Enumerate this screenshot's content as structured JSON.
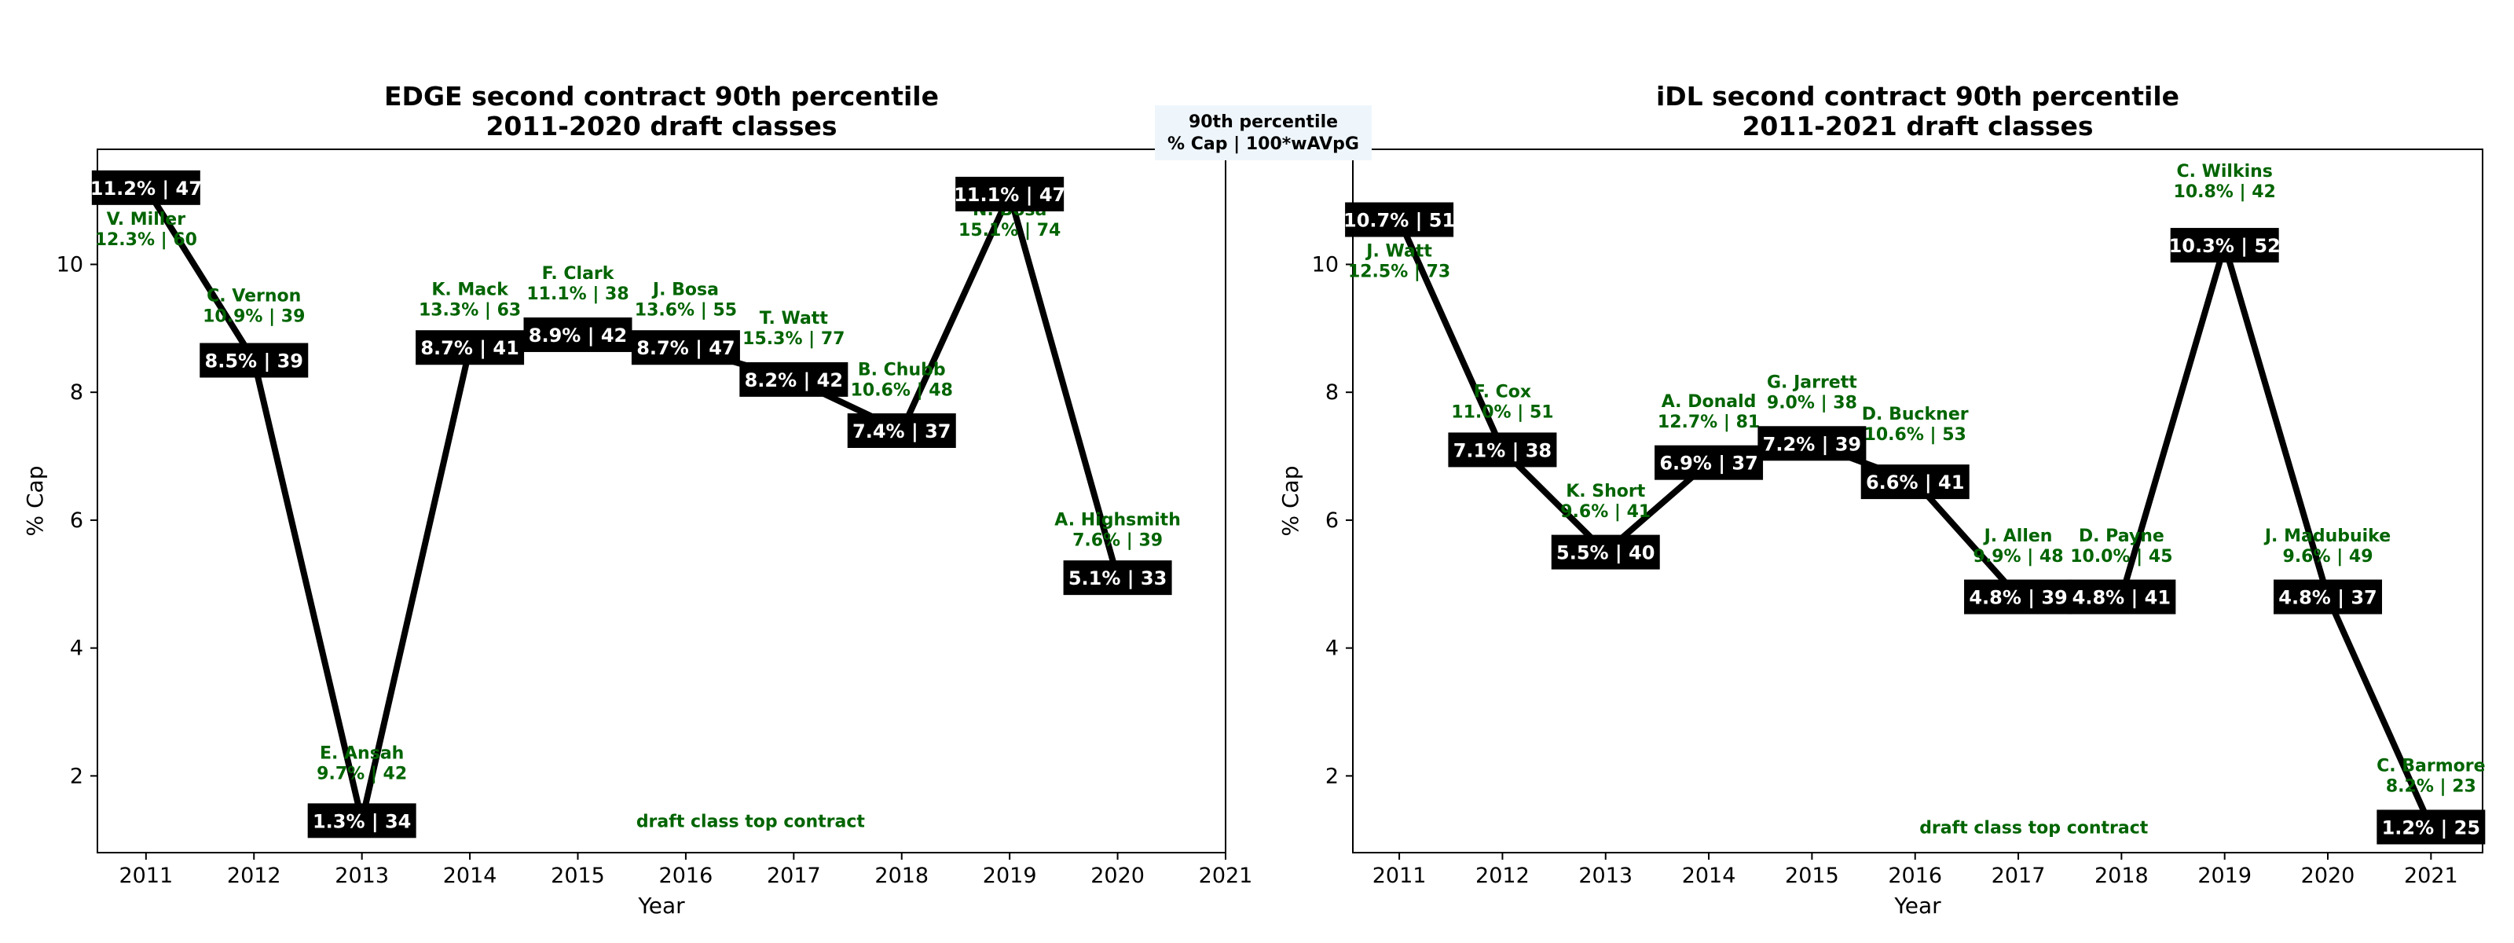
{
  "legend": {
    "line1": "90th percentile",
    "line2": "% Cap | 100*wAVpG",
    "bg": "#eef6fc"
  },
  "colors": {
    "line": "#000000",
    "label_box": "#000000",
    "label_text": "#ffffff",
    "annotation": "#006400"
  },
  "chart_data": [
    {
      "type": "line",
      "title_line1": "EDGE second contract 90th percentile",
      "title_line2": "2011-2020 draft classes",
      "xlabel": "Year",
      "ylabel": "% Cap",
      "xlim": [
        2010.55,
        2021
      ],
      "ylim": [
        0.8,
        11.8
      ],
      "xticks": [
        2011,
        2012,
        2013,
        2014,
        2015,
        2016,
        2017,
        2018,
        2019,
        2020,
        2021
      ],
      "yticks": [
        2,
        4,
        6,
        8,
        10
      ],
      "footnote": "draft class top contract",
      "footnote_x": 2016.6,
      "footnote_y": 1.2,
      "series": [
        {
          "x": [
            2011,
            2012,
            2013,
            2014,
            2015,
            2016,
            2017,
            2018,
            2019,
            2020
          ],
          "y": [
            11.2,
            8.5,
            1.3,
            8.7,
            8.9,
            8.7,
            8.2,
            7.4,
            11.1,
            5.1
          ],
          "labels": [
            "11.2% | 47",
            "8.5% | 39",
            "1.3% | 34",
            "8.7% | 41",
            "8.9% | 42",
            "8.7% | 47",
            "8.2% | 42",
            "7.4% | 37",
            "11.1% | 47",
            "5.1% | 33"
          ]
        }
      ],
      "annotations": [
        {
          "x": 2011,
          "y": 10.3,
          "name": "V. Miller",
          "value": "12.3% | 60"
        },
        {
          "x": 2012,
          "y": 9.1,
          "name": "C. Vernon",
          "value": "10.9% | 39"
        },
        {
          "x": 2013,
          "y": 1.95,
          "name": "E. Ansah",
          "value": "9.7% | 42"
        },
        {
          "x": 2014,
          "y": 9.2,
          "name": "K. Mack",
          "value": "13.3% | 63"
        },
        {
          "x": 2015,
          "y": 9.45,
          "name": "F. Clark",
          "value": "11.1% | 38"
        },
        {
          "x": 2016,
          "y": 9.2,
          "name": "J. Bosa",
          "value": "13.6% | 55"
        },
        {
          "x": 2017,
          "y": 8.75,
          "name": "T. Watt",
          "value": "15.3% | 77"
        },
        {
          "x": 2018,
          "y": 7.95,
          "name": "B. Chubb",
          "value": "10.6% | 48"
        },
        {
          "x": 2019,
          "y": 10.45,
          "name": "N. Bosa",
          "value": "15.1% | 74"
        },
        {
          "x": 2020,
          "y": 5.6,
          "name": "A. Highsmith",
          "value": "7.6% | 39"
        }
      ]
    },
    {
      "type": "line",
      "title_line1": "iDL second contract 90th percentile",
      "title_line2": "2011-2021 draft classes",
      "xlabel": "Year",
      "ylabel": "% Cap",
      "xlim": [
        2010.55,
        2021.5
      ],
      "ylim": [
        0.8,
        11.8
      ],
      "xticks": [
        2011,
        2012,
        2013,
        2014,
        2015,
        2016,
        2017,
        2018,
        2019,
        2020,
        2021
      ],
      "yticks": [
        2,
        4,
        6,
        8,
        10
      ],
      "footnote": "draft class top contract",
      "footnote_x": 2017.15,
      "footnote_y": 1.1,
      "series": [
        {
          "x": [
            2011,
            2012,
            2013,
            2014,
            2015,
            2016,
            2017,
            2018,
            2019,
            2020,
            2021
          ],
          "y": [
            10.7,
            7.1,
            5.5,
            6.9,
            7.2,
            6.6,
            4.8,
            4.8,
            10.3,
            4.8,
            1.2
          ],
          "labels": [
            "10.7% | 51",
            "7.1% | 38",
            "5.5% | 40",
            "6.9% | 37",
            "7.2% | 39",
            "6.6% | 41",
            "4.8% | 39",
            "4.8% | 41",
            "10.3% | 52",
            "4.8% | 37",
            "1.2% | 25"
          ]
        }
      ],
      "annotations": [
        {
          "x": 2011,
          "y": 9.8,
          "name": "J. Watt",
          "value": "12.5% | 73"
        },
        {
          "x": 2012,
          "y": 7.6,
          "name": "F. Cox",
          "value": "11.0% | 51"
        },
        {
          "x": 2013,
          "y": 6.05,
          "name": "K. Short",
          "value": "9.6% | 41"
        },
        {
          "x": 2014,
          "y": 7.45,
          "name": "A. Donald",
          "value": "12.7% | 81"
        },
        {
          "x": 2015,
          "y": 7.75,
          "name": "G. Jarrett",
          "value": "9.0% | 38"
        },
        {
          "x": 2016,
          "y": 7.25,
          "name": "D. Buckner",
          "value": "10.6% | 53"
        },
        {
          "x": 2017,
          "y": 5.35,
          "name": "J. Allen",
          "value": "9.9% | 48"
        },
        {
          "x": 2018,
          "y": 5.35,
          "name": "D. Payne",
          "value": "10.0% | 45"
        },
        {
          "x": 2019,
          "y": 11.05,
          "name": "C. Wilkins",
          "value": "10.8% | 42"
        },
        {
          "x": 2020,
          "y": 5.35,
          "name": "J. Madubuike",
          "value": "9.6% | 49"
        },
        {
          "x": 2021,
          "y": 1.75,
          "name": "C. Barmore",
          "value": "8.2% | 23"
        }
      ]
    }
  ]
}
